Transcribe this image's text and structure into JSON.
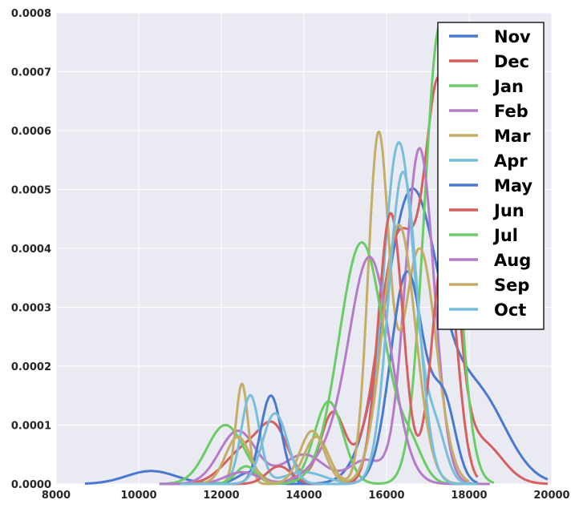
{
  "chart_data": {
    "type": "line",
    "subtype": "kde",
    "title": "",
    "xlabel": "",
    "ylabel": "",
    "xlim": [
      8000,
      20000
    ],
    "ylim": [
      0,
      0.0008
    ],
    "grid": true,
    "background": "#EAEAF2",
    "legend_position": "top-right",
    "x_ticks": [
      8000,
      10000,
      12000,
      14000,
      16000,
      18000,
      20000
    ],
    "y_ticks": [
      0,
      0.0001,
      0.0002,
      0.0003,
      0.0004,
      0.0005,
      0.0006,
      0.0007,
      0.0008
    ],
    "x_tick_labels": [
      "8000",
      "10000",
      "12000",
      "14000",
      "16000",
      "18000",
      "20000"
    ],
    "y_tick_labels": [
      "0.0000",
      "0.0001",
      "0.0002",
      "0.0003",
      "0.0004",
      "0.0005",
      "0.0006",
      "0.0007",
      "0.0008"
    ],
    "series": [
      {
        "name": "Nov",
        "color": "#4878CF",
        "range": [
          8700,
          19900
        ],
        "peaks": [
          [
            10300,
            600,
            2.2e-05
          ],
          [
            12700,
            300,
            2e-05
          ],
          [
            16600,
            650,
            0.00049
          ],
          [
            18200,
            700,
            0.00015
          ]
        ]
      },
      {
        "name": "Dec",
        "color": "#D65F5F",
        "range": [
          11000,
          19900
        ],
        "peaks": [
          [
            12600,
            500,
            6e-05
          ],
          [
            13300,
            350,
            8e-05
          ],
          [
            14700,
            300,
            0.00012
          ],
          [
            16300,
            500,
            0.00042
          ],
          [
            17300,
            350,
            0.00062
          ],
          [
            18300,
            500,
            7e-05
          ]
        ]
      },
      {
        "name": "Jan",
        "color": "#6ACC65",
        "range": [
          10500,
          18600
        ],
        "peaks": [
          [
            12100,
            450,
            0.0001
          ],
          [
            14600,
            350,
            0.00014
          ],
          [
            17300,
            380,
            0.00078
          ]
        ]
      },
      {
        "name": "Feb",
        "color": "#B47CC7",
        "range": [
          10700,
          18500
        ],
        "peaks": [
          [
            12400,
            450,
            9e-05
          ],
          [
            14000,
            500,
            5e-05
          ],
          [
            15500,
            400,
            4e-05
          ],
          [
            16800,
            350,
            0.00057
          ]
        ]
      },
      {
        "name": "Mar",
        "color": "#C4AD66",
        "range": [
          11000,
          18000
        ],
        "peaks": [
          [
            12500,
            150,
            0.00017
          ],
          [
            14300,
            300,
            8e-05
          ],
          [
            15800,
            250,
            0.00058
          ],
          [
            16800,
            400,
            0.0004
          ]
        ]
      },
      {
        "name": "Apr",
        "color": "#77BEDB",
        "range": [
          11000,
          18200
        ],
        "peaks": [
          [
            12700,
            220,
            0.00015
          ],
          [
            14000,
            500,
            2e-05
          ],
          [
            16300,
            380,
            0.00058
          ],
          [
            17200,
            250,
            8e-05
          ]
        ]
      },
      {
        "name": "May",
        "color": "#4878CF",
        "range": [
          11000,
          18200
        ],
        "peaks": [
          [
            13200,
            250,
            0.00015
          ],
          [
            16500,
            400,
            0.00036
          ],
          [
            17400,
            280,
            0.00013
          ]
        ]
      },
      {
        "name": "Jun",
        "color": "#D65F5F",
        "range": [
          11000,
          18200
        ],
        "peaks": [
          [
            13400,
            300,
            3e-05
          ],
          [
            16100,
            300,
            0.00046
          ],
          [
            17400,
            300,
            0.0004
          ]
        ]
      },
      {
        "name": "Jul",
        "color": "#6ACC65",
        "range": [
          10500,
          18000
        ],
        "peaks": [
          [
            12600,
            250,
            3e-05
          ],
          [
            15400,
            550,
            0.00041
          ],
          [
            16600,
            300,
            5e-05
          ]
        ]
      },
      {
        "name": "Aug",
        "color": "#B47CC7",
        "range": [
          10500,
          18000
        ],
        "peaks": [
          [
            12500,
            400,
            2e-05
          ],
          [
            14600,
            500,
            4e-05
          ],
          [
            15600,
            500,
            0.00038
          ]
        ]
      },
      {
        "name": "Sep",
        "color": "#C4AD66",
        "range": [
          11000,
          18000
        ],
        "peaks": [
          [
            12400,
            300,
            8e-05
          ],
          [
            14200,
            300,
            9e-05
          ],
          [
            16300,
            400,
            0.00044
          ]
        ]
      },
      {
        "name": "Oct",
        "color": "#77BEDB",
        "range": [
          11000,
          18200
        ],
        "peaks": [
          [
            13300,
            300,
            0.00012
          ],
          [
            16400,
            350,
            0.00053
          ]
        ]
      }
    ]
  }
}
